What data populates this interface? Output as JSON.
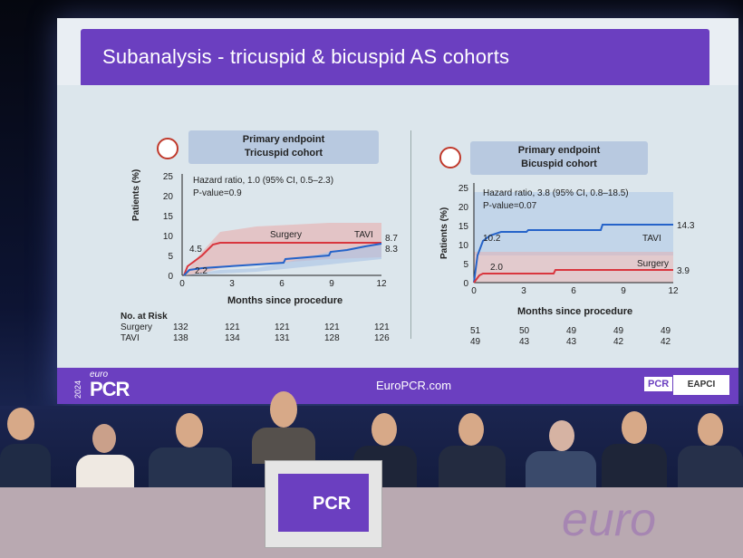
{
  "slide": {
    "title": "Subanalysis - tricuspid & bicuspid AS cohorts",
    "footer_url": "EuroPCR.com",
    "logo_year": "2024",
    "logo_euro": "euro",
    "logo_pcr": "PCR",
    "partner_pcr": "PCR",
    "partner_eapci": "EAPCI"
  },
  "left_panel": {
    "title_line1": "Primary endpoint",
    "title_line2": "Tricuspid cohort",
    "hazard": "Hazard ratio, 1.0 (95% CI, 0.5–2.3)",
    "pvalue": "P-value=0.9",
    "ylabel": "Patients (%)",
    "xlabel": "Months since procedure",
    "yticks": [
      "0",
      "5",
      "10",
      "15",
      "20",
      "25"
    ],
    "xticks": [
      "0",
      "3",
      "6",
      "9",
      "12"
    ],
    "label_surgery": "Surgery",
    "label_tavi": "TAVI",
    "end_surgery": "8.7",
    "end_tavi": "8.3",
    "early_surgery": "4.5",
    "early_tavi": "2.2",
    "risk_header": "No. at Risk",
    "risk_surgery_label": "Surgery",
    "risk_tavi_label": "TAVI",
    "risk_surgery": [
      "132",
      "121",
      "121",
      "121",
      "121"
    ],
    "risk_tavi": [
      "138",
      "134",
      "131",
      "128",
      "126"
    ]
  },
  "right_panel": {
    "title_line1": "Primary endpoint",
    "title_line2": "Bicuspid cohort",
    "hazard": "Hazard ratio, 3.8 (95% CI, 0.8–18.5)",
    "pvalue": "P-value=0.07",
    "ylabel": "Patients (%)",
    "xlabel": "Months since procedure",
    "yticks": [
      "0",
      "5",
      "10",
      "15",
      "20",
      "25"
    ],
    "xticks": [
      "0",
      "3",
      "6",
      "9",
      "12"
    ],
    "label_tavi": "TAVI",
    "label_surgery": "Surgery",
    "end_tavi": "14.3",
    "end_surgery": "3.9",
    "early_tavi": "10.2",
    "early_surgery": "2.0",
    "risk_surgery": [
      "51",
      "50",
      "49",
      "49",
      "49"
    ],
    "risk_tavi": [
      "49",
      "43",
      "43",
      "42",
      "42"
    ]
  },
  "colors": {
    "purple": "#6b3fc0",
    "surgery_red": "#d9363e",
    "tavi_blue": "#2563c9"
  },
  "podium": {
    "year": "2024",
    "logo": "PCR"
  },
  "banner": {
    "text": "euro"
  }
}
